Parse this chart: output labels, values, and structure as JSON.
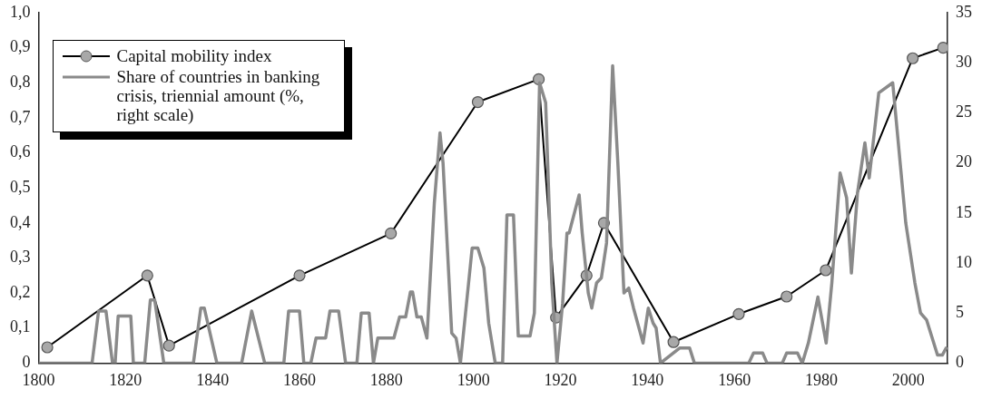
{
  "chart_data": {
    "type": "line",
    "xlim": [
      1800,
      2009
    ],
    "xticks": [
      1800,
      1820,
      1840,
      1860,
      1880,
      1900,
      1920,
      1940,
      1960,
      1980,
      2000
    ],
    "ylim": [
      0,
      1
    ],
    "yticks": [
      {
        "value": 0,
        "label": "0"
      },
      {
        "value": 0.1,
        "label": "0,1"
      },
      {
        "value": 0.2,
        "label": "0,2"
      },
      {
        "value": 0.3,
        "label": "0,3"
      },
      {
        "value": 0.4,
        "label": "0,4"
      },
      {
        "value": 0.5,
        "label": "0,5"
      },
      {
        "value": 0.6,
        "label": "0,6"
      },
      {
        "value": 0.7,
        "label": "0,7"
      },
      {
        "value": 0.8,
        "label": "0,8"
      },
      {
        "value": 0.9,
        "label": "0,9"
      },
      {
        "value": 1,
        "label": "1,0"
      }
    ],
    "y2lim": [
      0,
      35
    ],
    "y2ticks": [
      0,
      5,
      10,
      15,
      20,
      25,
      30,
      35
    ],
    "grid": false,
    "legend": "top left",
    "series": [
      {
        "name": "Share of countries in banking crisis, triennial amount (%, right scale)",
        "color": "#8a8a8a",
        "axis": "y2",
        "marker": "none",
        "line_style": "solid",
        "x": [
          1800,
          1812.3,
          1813.8,
          1815.5,
          1817,
          1817.6,
          1818.3,
          1821.2,
          1821.8,
          1824.4,
          1825.7,
          1826.7,
          1828.8,
          1835.6,
          1837.3,
          1838.1,
          1841,
          1846.7,
          1849,
          1852,
          1856.4,
          1857.5,
          1860,
          1861,
          1862.6,
          1863.8,
          1866,
          1867,
          1869,
          1870.6,
          1873.2,
          1874.2,
          1876,
          1877,
          1878,
          1881.7,
          1883,
          1884.4,
          1885.5,
          1886,
          1887,
          1888,
          1889.3,
          1891,
          1892.3,
          1893,
          1895,
          1896,
          1897,
          1899.7,
          1901,
          1902.4,
          1903.5,
          1905,
          1906.7,
          1907.7,
          1909.2,
          1910.3,
          1913,
          1914,
          1915.2,
          1916.6,
          1918,
          1919.2,
          1920.5,
          1921.5,
          1922,
          1924.3,
          1925,
          1926.4,
          1927.2,
          1928.3,
          1929.4,
          1930.6,
          1932,
          1933.2,
          1934.6,
          1935.7,
          1936.8,
          1939,
          1940.2,
          1941.3,
          1942,
          1943,
          1947.4,
          1949.7,
          1950.8,
          1963.3,
          1964.4,
          1966.5,
          1967.5,
          1971,
          1972,
          1974.5,
          1975.6,
          1977,
          1979.2,
          1981.1,
          1982.4,
          1984.3,
          1985.8,
          1986.9,
          1988.3,
          1990,
          1991,
          1993.2,
          1996.4,
          1997.9,
          1999.4,
          2001.5,
          2002.8,
          2004.2,
          2006.7,
          2007.8,
          2008.8
        ],
        "values": [
          0,
          0,
          5.2,
          5.2,
          0,
          0,
          4.7,
          4.7,
          0,
          0,
          6.3,
          6.3,
          0,
          0,
          5.5,
          5.5,
          0,
          0,
          5.2,
          0,
          0,
          5.2,
          5.2,
          0,
          0,
          2.5,
          2.5,
          5.2,
          5.2,
          0,
          0,
          5,
          5,
          0,
          2.5,
          2.5,
          4.6,
          4.6,
          7.1,
          7.1,
          4.6,
          4.6,
          2.5,
          16,
          23,
          20,
          3,
          2.5,
          0,
          11.5,
          11.5,
          9.5,
          4,
          0,
          0,
          14.8,
          14.8,
          2.7,
          2.7,
          5,
          28,
          26,
          8,
          0,
          6,
          13,
          13,
          16.8,
          13,
          7,
          5.5,
          8,
          8.5,
          12,
          29.7,
          20,
          7,
          7.5,
          5.5,
          2,
          5.5,
          4,
          3.5,
          0,
          1.5,
          1.5,
          0,
          0,
          1,
          1,
          0,
          0,
          1,
          1,
          0,
          2,
          6.6,
          2,
          8,
          19,
          16.5,
          9,
          17,
          22,
          18.5,
          27,
          28,
          21,
          14,
          8,
          5,
          4.3,
          0.8,
          0.8,
          1.6
        ]
      },
      {
        "name": "Capital mobility index",
        "color": "#000000",
        "marker": "circle",
        "line_style": "solid",
        "x": [
          1802,
          1825,
          1830,
          1860,
          1881,
          1901,
          1915,
          1919,
          1926,
          1930,
          1946,
          1961,
          1972,
          1981,
          2001,
          2008
        ],
        "values": [
          0.045,
          0.25,
          0.05,
          0.25,
          0.37,
          0.745,
          0.81,
          0.13,
          0.25,
          0.4,
          0.06,
          0.14,
          0.19,
          0.265,
          0.87,
          0.9
        ]
      }
    ]
  }
}
